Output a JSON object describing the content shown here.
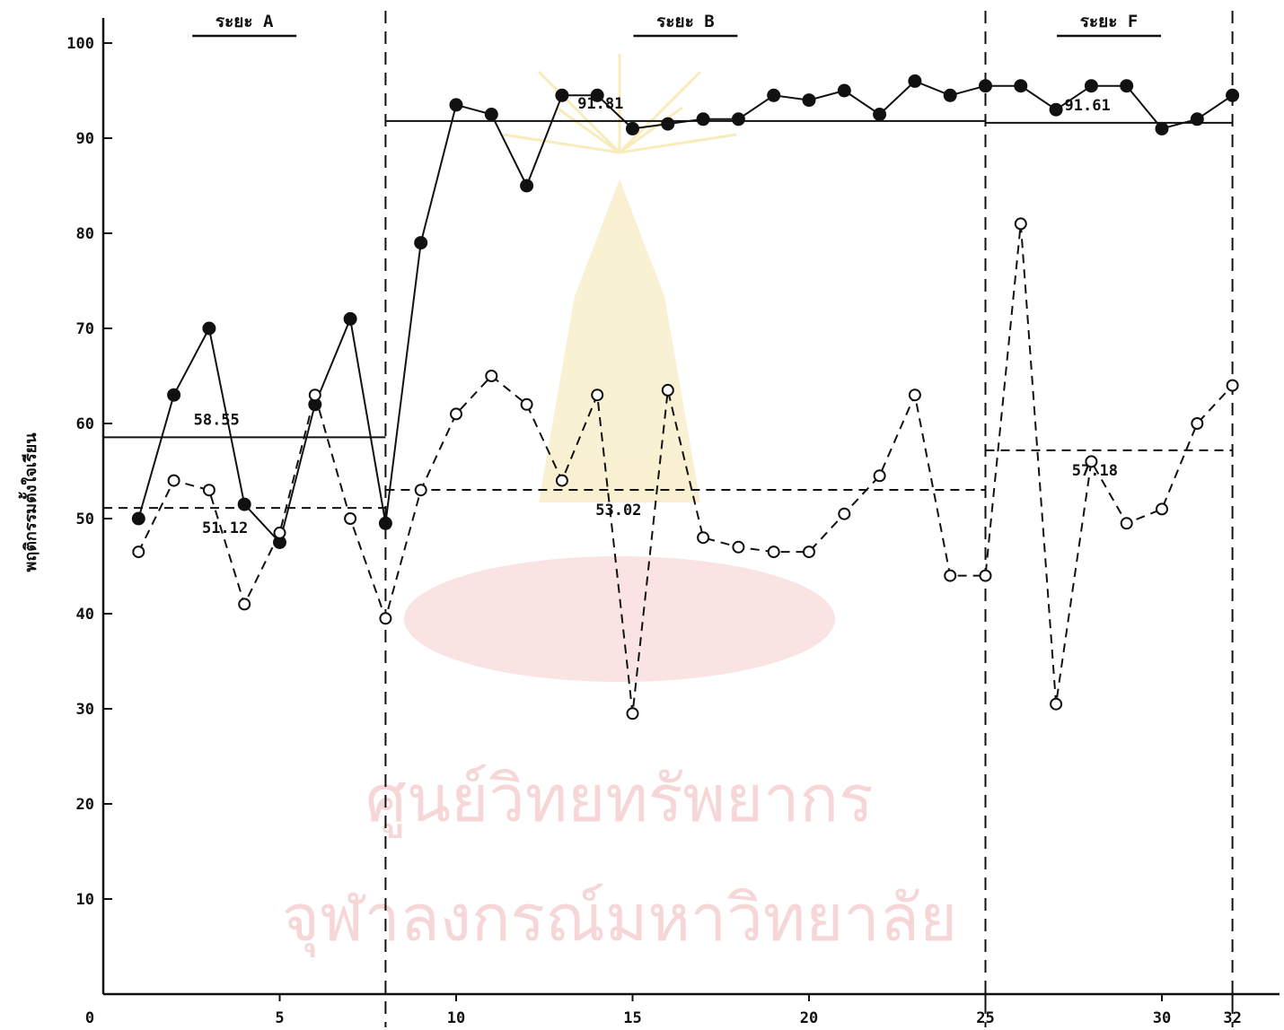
{
  "watermark": {
    "line1": "ศูนย์วิทยทรัพยากร",
    "line2": "จุฬาลงกรณ์มหาวิทยาลัย"
  },
  "chart_data": {
    "type": "line",
    "ylabel": "พฤติกรรมตั้งใจเรียน",
    "xlabel": "",
    "ylim": [
      0,
      100
    ],
    "xlim": [
      0,
      32
    ],
    "y_ticks": [
      10,
      20,
      30,
      40,
      50,
      60,
      70,
      80,
      90,
      100
    ],
    "x_ticks": [
      0,
      5,
      10,
      15,
      20,
      25,
      30,
      32
    ],
    "grid": false,
    "phase_boundaries": [
      8,
      25,
      32
    ],
    "phases": [
      {
        "label": "ระยะ A",
        "start": 0,
        "end": 8
      },
      {
        "label": "ระยะ B",
        "start": 8,
        "end": 25
      },
      {
        "label": "ระยะ F",
        "start": 25,
        "end": 32
      }
    ],
    "means": [
      {
        "series": "filled",
        "phase": "ระยะ A",
        "value": 58.55,
        "label": "58.55"
      },
      {
        "series": "open",
        "phase": "ระยะ A",
        "value": 51.12,
        "label": "51.12"
      },
      {
        "series": "filled",
        "phase": "ระยะ B",
        "value": 91.81,
        "label": "91.81"
      },
      {
        "series": "open",
        "phase": "ระยะ B",
        "value": 53.02,
        "label": "53.02"
      },
      {
        "series": "filled",
        "phase": "ระยะ F",
        "value": 91.61,
        "label": "91.61"
      },
      {
        "series": "open",
        "phase": "ระยะ F",
        "value": 57.18,
        "label": "57.18"
      }
    ],
    "series": [
      {
        "marker": "filled",
        "line_style": "solid",
        "points": [
          [
            1,
            50
          ],
          [
            2,
            63
          ],
          [
            3,
            70
          ],
          [
            4,
            51.5
          ],
          [
            5,
            47.5
          ],
          [
            6,
            62
          ],
          [
            7,
            71
          ],
          [
            8,
            49.5
          ],
          [
            9,
            79
          ],
          [
            10,
            93.5
          ],
          [
            11,
            92.5
          ],
          [
            12,
            85
          ],
          [
            13,
            94.5
          ],
          [
            14,
            94.5
          ],
          [
            15,
            91
          ],
          [
            16,
            91.5
          ],
          [
            17,
            92
          ],
          [
            18,
            92
          ],
          [
            19,
            94.5
          ],
          [
            20,
            94
          ],
          [
            21,
            95
          ],
          [
            22,
            92.5
          ],
          [
            23,
            96
          ],
          [
            24,
            94.5
          ],
          [
            25,
            95.5
          ],
          [
            26,
            95.5
          ],
          [
            27,
            93
          ],
          [
            28,
            95.5
          ],
          [
            29,
            95.5
          ],
          [
            30,
            91
          ],
          [
            31,
            92
          ],
          [
            32,
            94.5
          ]
        ]
      },
      {
        "marker": "open",
        "line_style": "dashed",
        "points": [
          [
            1,
            46.5
          ],
          [
            2,
            54
          ],
          [
            3,
            53
          ],
          [
            4,
            41
          ],
          [
            5,
            48.5
          ],
          [
            6,
            63
          ],
          [
            7,
            50
          ],
          [
            8,
            39.5
          ],
          [
            9,
            53
          ],
          [
            10,
            61
          ],
          [
            11,
            65
          ],
          [
            12,
            62
          ],
          [
            13,
            54
          ],
          [
            14,
            63
          ],
          [
            15,
            29.5
          ],
          [
            16,
            63.5
          ],
          [
            17,
            48
          ],
          [
            18,
            47
          ],
          [
            19,
            46.5
          ],
          [
            20,
            46.5
          ],
          [
            21,
            50.5
          ],
          [
            22,
            54.5
          ],
          [
            23,
            63
          ],
          [
            24,
            44
          ],
          [
            25,
            44
          ],
          [
            26,
            81
          ],
          [
            27,
            30.5
          ],
          [
            28,
            56
          ],
          [
            29,
            49.5
          ],
          [
            30,
            51
          ],
          [
            31,
            60
          ],
          [
            32,
            64
          ]
        ]
      }
    ]
  }
}
